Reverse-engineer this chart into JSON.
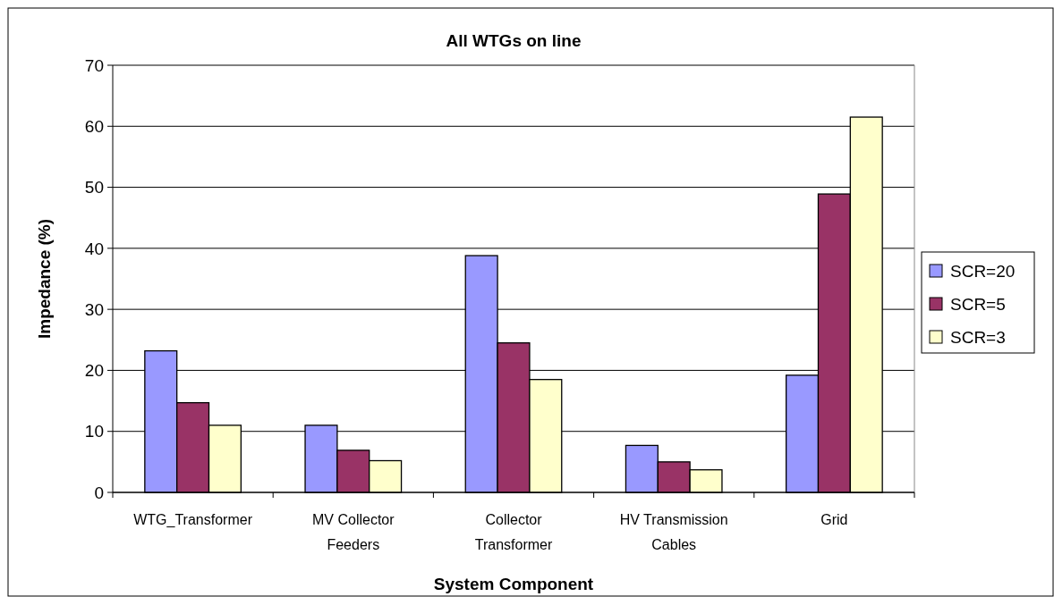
{
  "chart_data": {
    "type": "bar",
    "title": "All WTGs on line",
    "xlabel": "System Component",
    "ylabel": "Impedance (%)",
    "categories": [
      "WTG_Transformer",
      "MV Collector Feeders",
      "Collector Transformer",
      "HV Transmission Cables",
      "Grid"
    ],
    "series": [
      {
        "name": "SCR=20",
        "color": "#9999ff",
        "values": [
          23.2,
          11.0,
          38.8,
          7.7,
          19.2
        ]
      },
      {
        "name": "SCR=5",
        "color": "#993366",
        "values": [
          14.7,
          6.9,
          24.5,
          5.0,
          48.9
        ]
      },
      {
        "name": "SCR=3",
        "color": "#ffffcc",
        "values": [
          11.0,
          5.2,
          18.5,
          3.7,
          61.5
        ]
      }
    ],
    "ylim": [
      0,
      70
    ],
    "yticks": [
      0,
      10,
      20,
      30,
      40,
      50,
      60,
      70
    ],
    "grid": "y",
    "legend": "right"
  }
}
